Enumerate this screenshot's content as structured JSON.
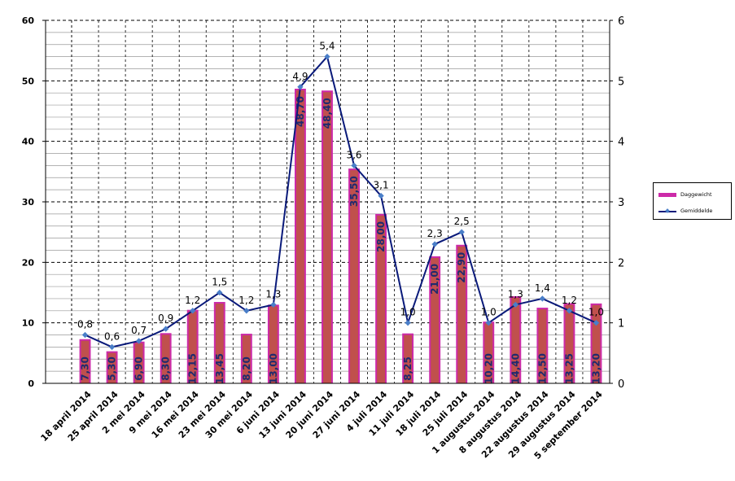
{
  "chart_data": {
    "type": "bar+line",
    "categories": [
      "18 april 2014",
      "25 april 2014",
      "2 mei 2014",
      "9 mei 2014",
      "16 mei 2014",
      "23 mei 2014",
      "30 mei 2014",
      "6 juni 2014",
      "13 juni 2014",
      "20 juni 2014",
      "27 juni 2014",
      "4 juli 2014",
      "11 juli 2014",
      "18 juli 2014",
      "25 juli 2014",
      "1 augustus 2014",
      "8 augustus 2014",
      "22 augustus 2014",
      "29 augustus 2014",
      "5 september 2014"
    ],
    "series": [
      {
        "name": "Daggewicht",
        "type": "bar",
        "axis": "left",
        "color": "#cc2aa8",
        "fill_color": "#c0504d",
        "values": [
          7.3,
          5.3,
          6.9,
          8.3,
          12.15,
          13.45,
          8.2,
          13.0,
          48.7,
          48.4,
          35.5,
          28.0,
          8.25,
          21.0,
          22.9,
          10.2,
          14.4,
          12.5,
          13.25,
          13.2
        ],
        "labels": [
          "7,30",
          "5,30",
          "6,90",
          "8,30",
          "12,15",
          "13,45",
          "8,20",
          "13,00",
          "48,70",
          "48,40",
          "35,50",
          "28,00",
          "8,25",
          "21,00",
          "22,90",
          "10,20",
          "14,40",
          "12,50",
          "13,25",
          "13,20"
        ]
      },
      {
        "name": "Gemiddelde",
        "type": "line",
        "axis": "right",
        "color": "#0a1a7a",
        "marker_color": "#4a7ec8",
        "values": [
          0.8,
          0.6,
          0.7,
          0.9,
          1.2,
          1.5,
          1.2,
          1.3,
          4.9,
          5.4,
          3.6,
          3.1,
          1.0,
          2.3,
          2.5,
          1.0,
          1.3,
          1.4,
          1.2,
          1.0
        ],
        "labels": [
          "0,8",
          "0,6",
          "0,7",
          "0,9",
          "1,2",
          "1,5",
          "1,2",
          "1,3",
          "4,9",
          "5,4",
          "3,6",
          "3,1",
          "1,0",
          "2,3",
          "2,5",
          "1,0",
          "1,3",
          "1,4",
          "1,2",
          "1,0"
        ]
      }
    ],
    "y_left": {
      "ylim": [
        0,
        60
      ],
      "ticks": [
        "0",
        "10",
        "20",
        "30",
        "40",
        "50",
        "60"
      ]
    },
    "y_right": {
      "ylim": [
        0,
        6
      ],
      "ticks": [
        "0",
        "1",
        "2",
        "3",
        "4",
        "5",
        "6"
      ]
    },
    "grid": "horizontal minor solid, vertical dashed",
    "legend": "right"
  }
}
